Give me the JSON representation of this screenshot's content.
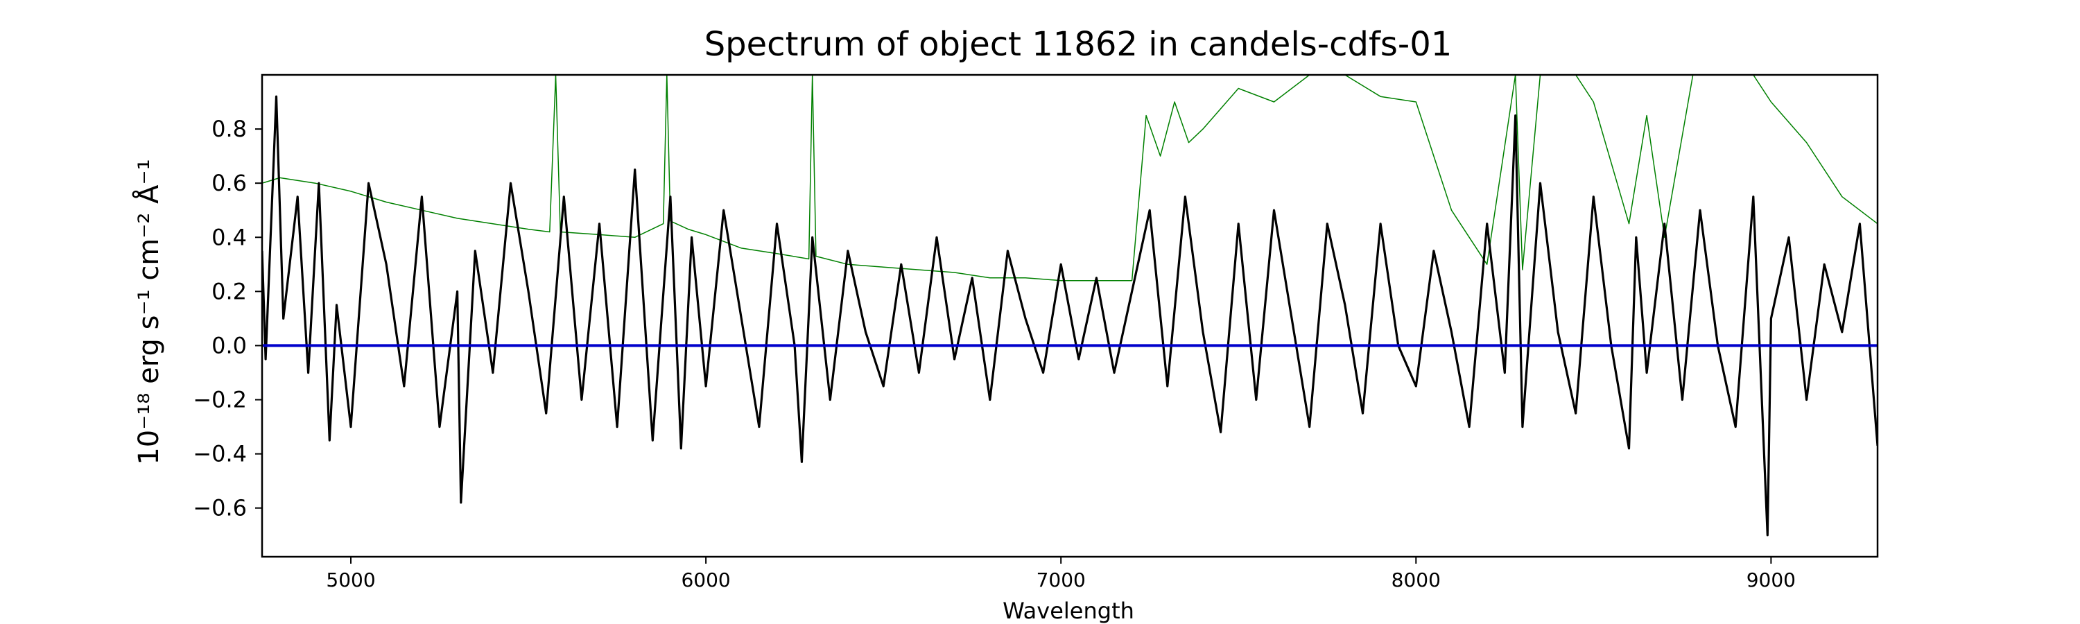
{
  "chart_data": {
    "type": "line",
    "title": "Spectrum of object 11862 in candels-cdfs-01",
    "xlabel": "Wavelength",
    "ylabel": "10⁻¹⁸ erg s⁻¹ cm⁻² Å⁻¹",
    "xlim": [
      4750,
      9300
    ],
    "ylim": [
      -0.78,
      1.0
    ],
    "xticks": [
      5000,
      6000,
      7000,
      8000,
      9000
    ],
    "xtick_labels": [
      "5000",
      "6000",
      "7000",
      "8000",
      "9000"
    ],
    "yticks": [
      -0.6,
      -0.4,
      -0.2,
      0.0,
      0.2,
      0.4,
      0.6,
      0.8
    ],
    "ytick_labels": [
      "−0.6",
      "−0.4",
      "−0.2",
      "0.0",
      "0.2",
      "0.4",
      "0.6",
      "0.8"
    ],
    "grid": false,
    "series": [
      {
        "color": "#008000",
        "x": [
          4750,
          4800,
          4900,
          5000,
          5100,
          5200,
          5300,
          5400,
          5500,
          5560,
          5577,
          5590,
          5700,
          5800,
          5880,
          5890,
          5900,
          5950,
          6000,
          6100,
          6200,
          6290,
          6300,
          6310,
          6400,
          6500,
          6600,
          6700,
          6800,
          6900,
          7000,
          7100,
          7200,
          7240,
          7280,
          7320,
          7360,
          7400,
          7500,
          7600,
          7700,
          7800,
          7900,
          8000,
          8100,
          8200,
          8280,
          8300,
          8350,
          8400,
          8450,
          8500,
          8600,
          8650,
          8700,
          8780,
          8800,
          8850,
          8900,
          8950,
          9000,
          9100,
          9200,
          9300
        ],
        "y": [
          0.6,
          0.62,
          0.6,
          0.57,
          0.53,
          0.5,
          0.47,
          0.45,
          0.43,
          0.42,
          1.0,
          0.42,
          0.41,
          0.4,
          0.45,
          1.0,
          0.46,
          0.43,
          0.41,
          0.36,
          0.34,
          0.32,
          1.0,
          0.33,
          0.3,
          0.29,
          0.28,
          0.27,
          0.25,
          0.25,
          0.24,
          0.24,
          0.24,
          0.85,
          0.7,
          0.9,
          0.75,
          0.8,
          0.95,
          0.9,
          1.0,
          1.0,
          0.92,
          0.9,
          0.5,
          0.3,
          1.0,
          0.28,
          1.0,
          1.0,
          1.0,
          0.9,
          0.45,
          0.85,
          0.4,
          1.0,
          1.0,
          1.0,
          1.0,
          1.0,
          0.9,
          0.75,
          0.55,
          0.45
        ]
      },
      {
        "color": "#000000",
        "x": [
          4750,
          4760,
          4790,
          4810,
          4850,
          4880,
          4910,
          4940,
          4960,
          5000,
          5050,
          5100,
          5150,
          5200,
          5250,
          5300,
          5310,
          5350,
          5400,
          5450,
          5500,
          5550,
          5600,
          5650,
          5700,
          5750,
          5800,
          5850,
          5900,
          5930,
          5960,
          6000,
          6050,
          6100,
          6150,
          6200,
          6250,
          6270,
          6300,
          6350,
          6400,
          6450,
          6500,
          6550,
          6600,
          6650,
          6700,
          6750,
          6800,
          6850,
          6900,
          6950,
          7000,
          7050,
          7100,
          7150,
          7200,
          7250,
          7300,
          7350,
          7400,
          7450,
          7500,
          7550,
          7600,
          7650,
          7700,
          7750,
          7800,
          7850,
          7900,
          7950,
          8000,
          8050,
          8100,
          8150,
          8200,
          8250,
          8280,
          8300,
          8350,
          8400,
          8450,
          8500,
          8550,
          8600,
          8620,
          8650,
          8700,
          8750,
          8800,
          8850,
          8900,
          8950,
          8990,
          9000,
          9050,
          9100,
          9150,
          9200,
          9250,
          9300
        ],
        "y": [
          0.35,
          -0.05,
          0.92,
          0.1,
          0.55,
          -0.1,
          0.6,
          -0.35,
          0.15,
          -0.3,
          0.6,
          0.3,
          -0.15,
          0.55,
          -0.3,
          0.2,
          -0.58,
          0.35,
          -0.1,
          0.6,
          0.2,
          -0.25,
          0.55,
          -0.2,
          0.45,
          -0.3,
          0.65,
          -0.35,
          0.55,
          -0.38,
          0.4,
          -0.15,
          0.5,
          0.1,
          -0.3,
          0.45,
          0.0,
          -0.43,
          0.4,
          -0.2,
          0.35,
          0.05,
          -0.15,
          0.3,
          -0.1,
          0.4,
          -0.05,
          0.25,
          -0.2,
          0.35,
          0.1,
          -0.1,
          0.3,
          -0.05,
          0.25,
          -0.1,
          0.2,
          0.5,
          -0.15,
          0.55,
          0.05,
          -0.32,
          0.45,
          -0.2,
          0.5,
          0.1,
          -0.3,
          0.45,
          0.15,
          -0.25,
          0.45,
          0.0,
          -0.15,
          0.35,
          0.05,
          -0.3,
          0.45,
          -0.1,
          0.85,
          -0.3,
          0.6,
          0.05,
          -0.25,
          0.55,
          0.0,
          -0.38,
          0.4,
          -0.1,
          0.45,
          -0.2,
          0.5,
          0.0,
          -0.3,
          0.55,
          -0.7,
          0.1,
          0.4,
          -0.2,
          0.3,
          0.05,
          0.45,
          -0.37
        ]
      },
      {
        "color": "#0000cc",
        "x": [
          4750,
          9300
        ],
        "y": [
          0.0,
          0.0
        ]
      }
    ]
  }
}
